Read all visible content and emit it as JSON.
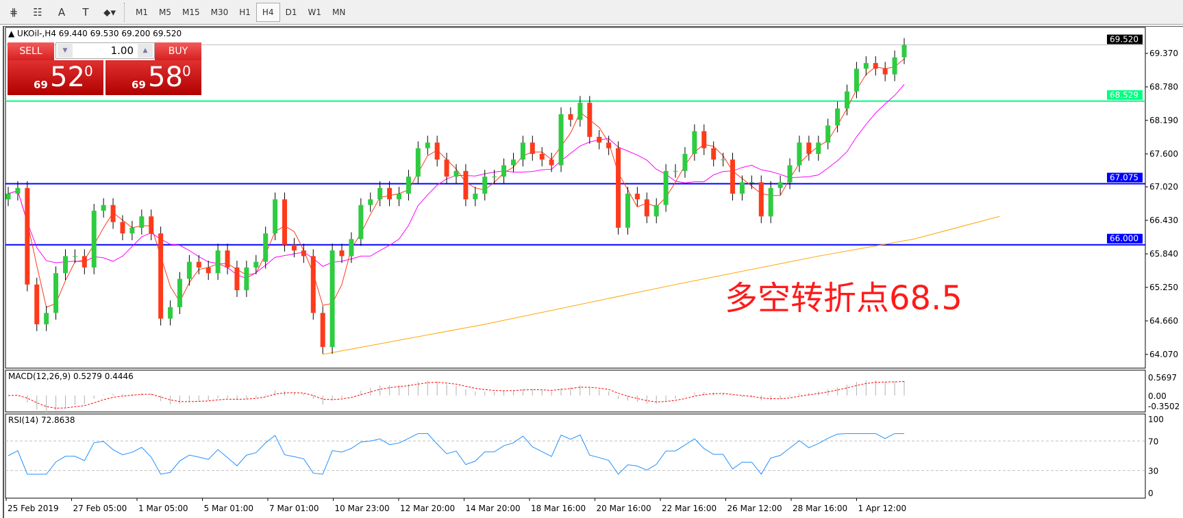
{
  "toolbar": {
    "tools": [
      {
        "icon": "crosshair-lines-icon",
        "glyph": "⋕"
      },
      {
        "icon": "fibonacci-icon",
        "glyph": "☷"
      },
      {
        "icon": "text-icon",
        "glyph": "A"
      },
      {
        "icon": "text-label-icon",
        "glyph": "T"
      },
      {
        "icon": "arrows-dropdown-icon",
        "glyph": "⬥▾"
      }
    ],
    "timeframes": [
      "M1",
      "M5",
      "M15",
      "M30",
      "H1",
      "H4",
      "D1",
      "W1",
      "MN"
    ],
    "active_timeframe": "H4"
  },
  "chart": {
    "title": "UKOil-,H4  69.440 69.530 69.200 69.520",
    "annotation": "多空转折点68.5"
  },
  "trade_panel": {
    "sell_label": "SELL",
    "buy_label": "BUY",
    "lot": "1.00",
    "sell_prefix": "69",
    "sell_big": "52",
    "sell_sup": "0",
    "buy_prefix": "69",
    "buy_big": "58",
    "buy_sup": "0"
  },
  "chart_data": {
    "type": "candlestick",
    "symbol": "UKOil-",
    "timeframe": "H4",
    "closes": [
      66.9,
      67.0,
      65.3,
      64.6,
      64.8,
      65.5,
      65.8,
      65.8,
      65.6,
      66.6,
      66.7,
      66.4,
      66.2,
      66.3,
      66.5,
      66.2,
      64.7,
      64.9,
      65.4,
      65.7,
      65.6,
      65.5,
      65.9,
      65.6,
      65.2,
      65.6,
      65.7,
      66.2,
      66.8,
      66.0,
      65.9,
      65.8,
      64.8,
      64.2,
      65.9,
      65.8,
      66.1,
      66.7,
      66.8,
      67.0,
      66.8,
      66.9,
      67.2,
      67.7,
      67.8,
      67.5,
      67.2,
      67.3,
      66.8,
      66.9,
      67.2,
      67.2,
      67.4,
      67.5,
      67.8,
      67.6,
      67.5,
      67.4,
      68.3,
      68.2,
      68.5,
      67.9,
      67.8,
      67.7,
      66.3,
      66.9,
      66.8,
      66.5,
      66.7,
      67.3,
      67.3,
      67.6,
      68.0,
      67.7,
      67.5,
      67.5,
      66.9,
      67.1,
      67.1,
      66.5,
      67.0,
      67.1,
      67.4,
      67.8,
      67.6,
      67.8,
      68.1,
      68.4,
      68.7,
      69.1,
      69.2,
      69.1,
      69.0,
      69.3,
      69.52
    ],
    "ma_slow": [
      [
        33,
        64.07
      ],
      [
        50,
        64.6
      ],
      [
        70,
        65.3
      ],
      [
        85,
        65.8
      ],
      [
        95,
        66.1
      ],
      [
        104,
        66.5
      ]
    ],
    "price_ticks": [
      "69.370",
      "68.780",
      "68.190",
      "67.600",
      "67.020",
      "66.430",
      "65.840",
      "65.250",
      "64.660",
      "64.070"
    ],
    "price_tick_values": [
      69.37,
      68.78,
      68.19,
      67.6,
      67.02,
      66.43,
      65.84,
      65.25,
      64.66,
      64.07
    ],
    "current_price": "69.520",
    "hlines": [
      {
        "value": 68.529,
        "label": "68.529",
        "color": "#00ff80"
      },
      {
        "value": 67.075,
        "label": "67.075",
        "color": "#0000ff"
      },
      {
        "value": 66.0,
        "label": "66.000",
        "color": "#0000ff"
      }
    ],
    "colors": {
      "bull": "#2ecc40",
      "bear": "#ff3a1a",
      "ma_fast": "#ff3a1a",
      "ma_mid": "#ff00ff",
      "ma_slow": "#ffa500",
      "macd_signal": "#ff0000",
      "rsi": "#1e90ff"
    },
    "macd": {
      "label": "MACD(12,26,9) 0.5279 0.4446",
      "ticks": [
        "0.5697",
        "0.00",
        "-0.3502"
      ]
    },
    "rsi": {
      "label": "RSI(14) 72.8638",
      "ticks": [
        "100",
        "70",
        "30",
        "0"
      ],
      "levels": [
        70,
        30
      ]
    },
    "x_labels": [
      "25 Feb 2019",
      "27 Feb 05:00",
      "1 Mar 05:00",
      "5 Mar 01:00",
      "7 Mar 01:00",
      "10 Mar 23:00",
      "12 Mar 20:00",
      "14 Mar 20:00",
      "18 Mar 16:00",
      "20 Mar 16:00",
      "22 Mar 16:00",
      "26 Mar 12:00",
      "28 Mar 16:00",
      "1 Apr 12:00"
    ]
  }
}
